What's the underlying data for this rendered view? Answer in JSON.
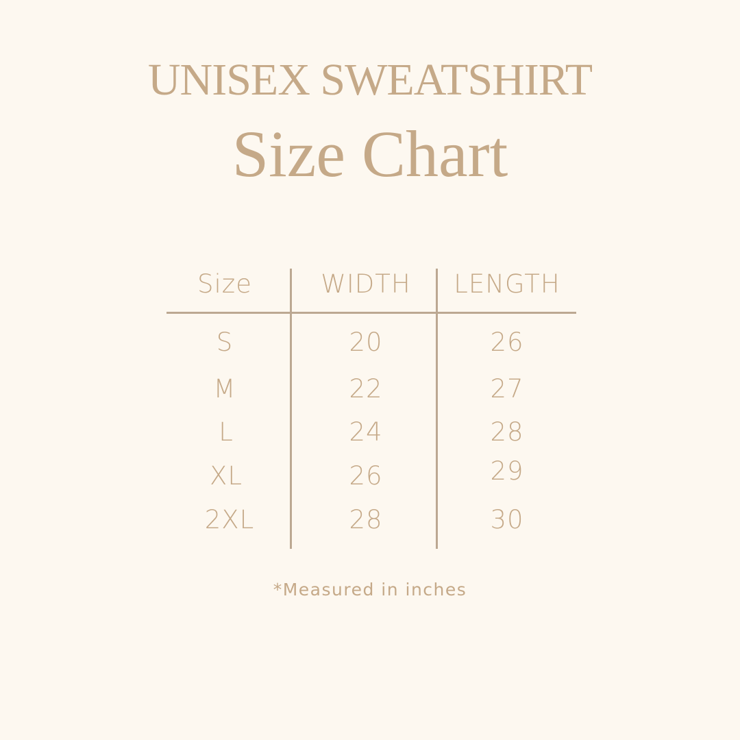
{
  "title": {
    "line1": "UNISEX SWEATSHIRT",
    "line2": "Size Chart"
  },
  "table": {
    "headers": [
      "Size",
      "WIDTH",
      "LENGTH"
    ],
    "rows": [
      [
        "S",
        "20",
        "26"
      ],
      [
        "M",
        "22",
        "27"
      ],
      [
        "L",
        "24",
        "28"
      ],
      [
        "XL",
        "26",
        "29"
      ],
      [
        "2XL",
        "28",
        "30"
      ]
    ]
  },
  "footnote": "*Measured in inches",
  "colors": {
    "background": "#fdf8f0",
    "text": "#c5a988",
    "lines": "#bca892"
  }
}
